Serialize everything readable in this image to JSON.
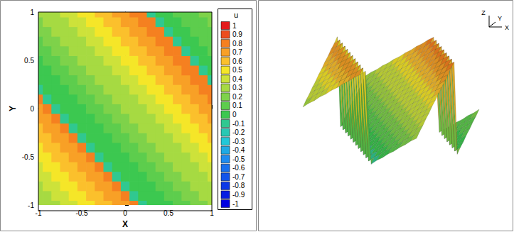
{
  "chart_data": [
    {
      "type": "contour",
      "xlabel": "X",
      "ylabel": "Y",
      "xlim": [
        -1,
        1
      ],
      "ylim": [
        -1,
        1
      ],
      "xticks": [
        -1,
        -0.5,
        0,
        0.5,
        1
      ],
      "yticks": [
        -1,
        -0.5,
        0,
        0.5,
        1
      ],
      "colorbar": {
        "title": "u",
        "range": [
          -1,
          1
        ],
        "ticks": [
          1,
          0.9,
          0.8,
          0.7,
          0.6,
          0.5,
          0.4,
          0.3,
          0.2,
          0.1,
          0,
          -0.1,
          -0.2,
          -0.3,
          -0.4,
          -0.5,
          -0.6,
          -0.7,
          -0.8,
          -0.9,
          -1
        ]
      },
      "x": [
        -1,
        -0.9,
        -0.8,
        -0.7,
        -0.6,
        -0.5,
        -0.4,
        -0.3,
        -0.2,
        -0.1,
        0,
        0.1,
        0.2,
        0.3,
        0.4,
        0.5,
        0.6,
        0.7,
        0.8,
        0.9,
        1
      ],
      "y": [
        -1,
        -0.9,
        -0.8,
        -0.7,
        -0.6,
        -0.5,
        -0.4,
        -0.3,
        -0.2,
        -0.1,
        0,
        0.1,
        0.2,
        0.3,
        0.4,
        0.5,
        0.6,
        0.7,
        0.8,
        0.9,
        1
      ],
      "z": [
        [
          0.26,
          0.31,
          0.35,
          0.4,
          0.44,
          0.49,
          0.53,
          0.58,
          0.62,
          0.67,
          0.71,
          0.76,
          -0.1,
          -0.05,
          -0.01,
          0.04,
          0.08,
          0.13,
          0.17,
          0.22,
          0.26
        ],
        [
          0.31,
          0.35,
          0.4,
          0.44,
          0.49,
          0.53,
          0.58,
          0.62,
          0.67,
          0.71,
          0.76,
          -0.1,
          -0.05,
          -0.01,
          0.04,
          0.08,
          0.13,
          0.17,
          0.22,
          0.26,
          0.31
        ],
        [
          0.35,
          0.4,
          0.44,
          0.49,
          0.53,
          0.58,
          0.62,
          0.67,
          0.71,
          0.76,
          -0.1,
          -0.05,
          -0.01,
          0.04,
          0.08,
          0.13,
          0.17,
          0.22,
          0.26,
          0.31,
          0.35
        ],
        [
          0.4,
          0.44,
          0.49,
          0.53,
          0.58,
          0.62,
          0.67,
          0.71,
          0.76,
          -0.1,
          -0.05,
          -0.01,
          0.04,
          0.08,
          0.13,
          0.17,
          0.22,
          0.26,
          0.31,
          0.35,
          0.4
        ],
        [
          0.44,
          0.49,
          0.53,
          0.58,
          0.62,
          0.67,
          0.71,
          0.76,
          -0.1,
          -0.05,
          -0.01,
          0.04,
          0.08,
          0.13,
          0.17,
          0.22,
          0.26,
          0.31,
          0.35,
          0.4,
          0.44
        ],
        [
          0.49,
          0.53,
          0.58,
          0.62,
          0.67,
          0.71,
          0.76,
          -0.1,
          -0.05,
          -0.01,
          0.04,
          0.08,
          0.13,
          0.17,
          0.22,
          0.26,
          0.31,
          0.35,
          0.4,
          0.44,
          0.49
        ],
        [
          0.53,
          0.58,
          0.62,
          0.67,
          0.71,
          0.76,
          -0.1,
          -0.05,
          -0.01,
          0.04,
          0.08,
          0.13,
          0.17,
          0.22,
          0.26,
          0.31,
          0.35,
          0.4,
          0.44,
          0.49,
          0.53
        ],
        [
          0.58,
          0.62,
          0.67,
          0.71,
          0.76,
          -0.1,
          -0.05,
          -0.01,
          0.04,
          0.08,
          0.13,
          0.17,
          0.22,
          0.26,
          0.31,
          0.35,
          0.4,
          0.44,
          0.49,
          0.53,
          0.58
        ],
        [
          0.62,
          0.67,
          0.71,
          0.76,
          -0.1,
          -0.05,
          -0.01,
          0.04,
          0.08,
          0.13,
          0.17,
          0.22,
          0.26,
          0.31,
          0.35,
          0.4,
          0.44,
          0.49,
          0.53,
          0.58,
          0.62
        ],
        [
          0.67,
          0.71,
          0.76,
          -0.1,
          -0.05,
          -0.01,
          0.04,
          0.08,
          0.13,
          0.17,
          0.22,
          0.26,
          0.31,
          0.35,
          0.4,
          0.44,
          0.49,
          0.53,
          0.58,
          0.62,
          0.67
        ],
        [
          0.71,
          0.76,
          -0.1,
          -0.05,
          -0.01,
          0.04,
          0.08,
          0.13,
          0.17,
          0.22,
          0.26,
          0.31,
          0.35,
          0.4,
          0.44,
          0.49,
          0.53,
          0.58,
          0.62,
          0.67,
          0.71
        ],
        [
          0.76,
          -0.1,
          -0.05,
          -0.01,
          0.04,
          0.08,
          0.13,
          0.17,
          0.22,
          0.26,
          0.31,
          0.35,
          0.4,
          0.44,
          0.49,
          0.53,
          0.58,
          0.62,
          0.67,
          0.71,
          0.76
        ],
        [
          -0.1,
          -0.05,
          -0.01,
          0.04,
          0.08,
          0.13,
          0.17,
          0.22,
          0.26,
          0.31,
          0.35,
          0.4,
          0.44,
          0.49,
          0.53,
          0.58,
          0.62,
          0.67,
          0.71,
          0.76,
          0.8
        ],
        [
          -0.05,
          -0.01,
          0.04,
          0.08,
          0.13,
          0.17,
          0.22,
          0.26,
          0.31,
          0.35,
          0.4,
          0.44,
          0.49,
          0.53,
          0.58,
          0.62,
          0.67,
          0.71,
          0.76,
          0.8,
          -0.08
        ],
        [
          -0.01,
          0.04,
          0.08,
          0.13,
          0.17,
          0.22,
          0.26,
          0.31,
          0.35,
          0.4,
          0.44,
          0.49,
          0.53,
          0.58,
          0.62,
          0.67,
          0.71,
          0.76,
          0.8,
          -0.08,
          -0.03
        ],
        [
          0.04,
          0.08,
          0.13,
          0.17,
          0.22,
          0.26,
          0.31,
          0.35,
          0.4,
          0.44,
          0.49,
          0.53,
          0.58,
          0.62,
          0.67,
          0.71,
          0.76,
          0.8,
          -0.08,
          -0.03,
          0.01
        ],
        [
          0.08,
          0.13,
          0.17,
          0.22,
          0.26,
          0.31,
          0.35,
          0.4,
          0.44,
          0.49,
          0.53,
          0.58,
          0.62,
          0.67,
          0.71,
          0.76,
          0.8,
          -0.08,
          -0.03,
          0.01,
          0.06
        ],
        [
          0.13,
          0.17,
          0.22,
          0.26,
          0.31,
          0.35,
          0.4,
          0.44,
          0.49,
          0.53,
          0.58,
          0.62,
          0.67,
          0.71,
          0.76,
          0.8,
          -0.08,
          -0.03,
          0.01,
          0.06,
          0.1
        ],
        [
          0.17,
          0.22,
          0.26,
          0.31,
          0.35,
          0.4,
          0.44,
          0.49,
          0.53,
          0.58,
          0.62,
          0.67,
          0.71,
          0.76,
          0.8,
          -0.08,
          -0.03,
          0.01,
          0.06,
          0.1,
          0.15
        ],
        [
          0.22,
          0.26,
          0.31,
          0.35,
          0.4,
          0.44,
          0.49,
          0.53,
          0.58,
          0.62,
          0.67,
          0.71,
          0.76,
          0.8,
          -0.08,
          -0.03,
          0.01,
          0.06,
          0.1,
          0.15,
          0.19
        ],
        [
          0.26,
          0.31,
          0.35,
          0.4,
          0.44,
          0.49,
          0.53,
          0.58,
          0.62,
          0.67,
          0.71,
          0.76,
          0.8,
          -0.08,
          -0.03,
          0.01,
          0.06,
          0.1,
          0.15,
          0.19,
          0.24
        ]
      ]
    },
    {
      "type": "surface",
      "axis_labels": [
        "Z",
        "Y",
        "X"
      ]
    }
  ]
}
